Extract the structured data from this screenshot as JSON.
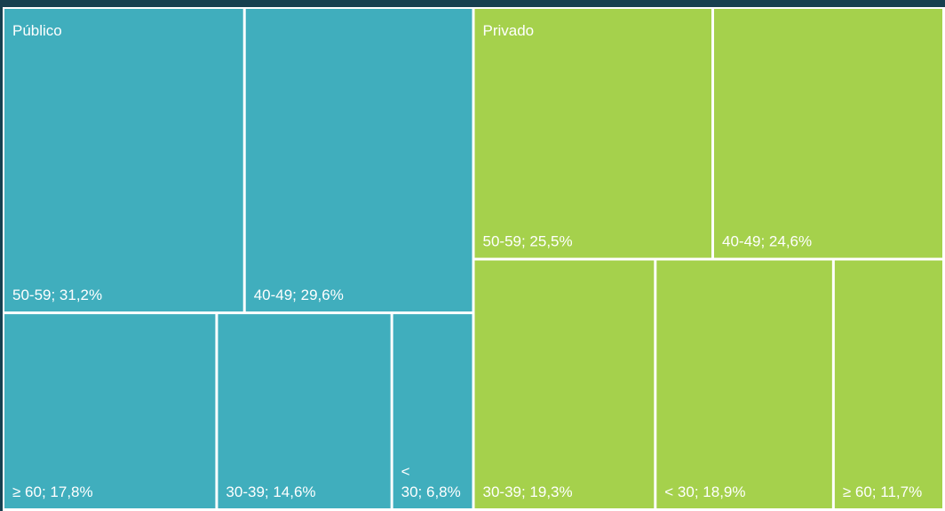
{
  "chart_data": {
    "type": "treemap",
    "series": [
      {
        "name": "Público",
        "color": "#40aebd",
        "values": [
          31.2,
          29.6,
          17.8,
          14.6,
          6.8
        ],
        "value_labels": [
          "50-59; 31,2%",
          "40-49; 29,6%",
          "≥ 60; 17,8%",
          "30-39; 14,6%",
          "< 30; 6,8%"
        ]
      },
      {
        "name": "Privado",
        "color": "#a5d14c",
        "values": [
          25.5,
          24.6,
          19.3,
          18.9,
          11.7
        ],
        "value_labels": [
          "50-59; 25,5%",
          "40-49; 24,6%",
          "30-39; 19,3%",
          "< 30; 18,9%",
          "≥ 60; 11,7%"
        ]
      }
    ]
  }
}
